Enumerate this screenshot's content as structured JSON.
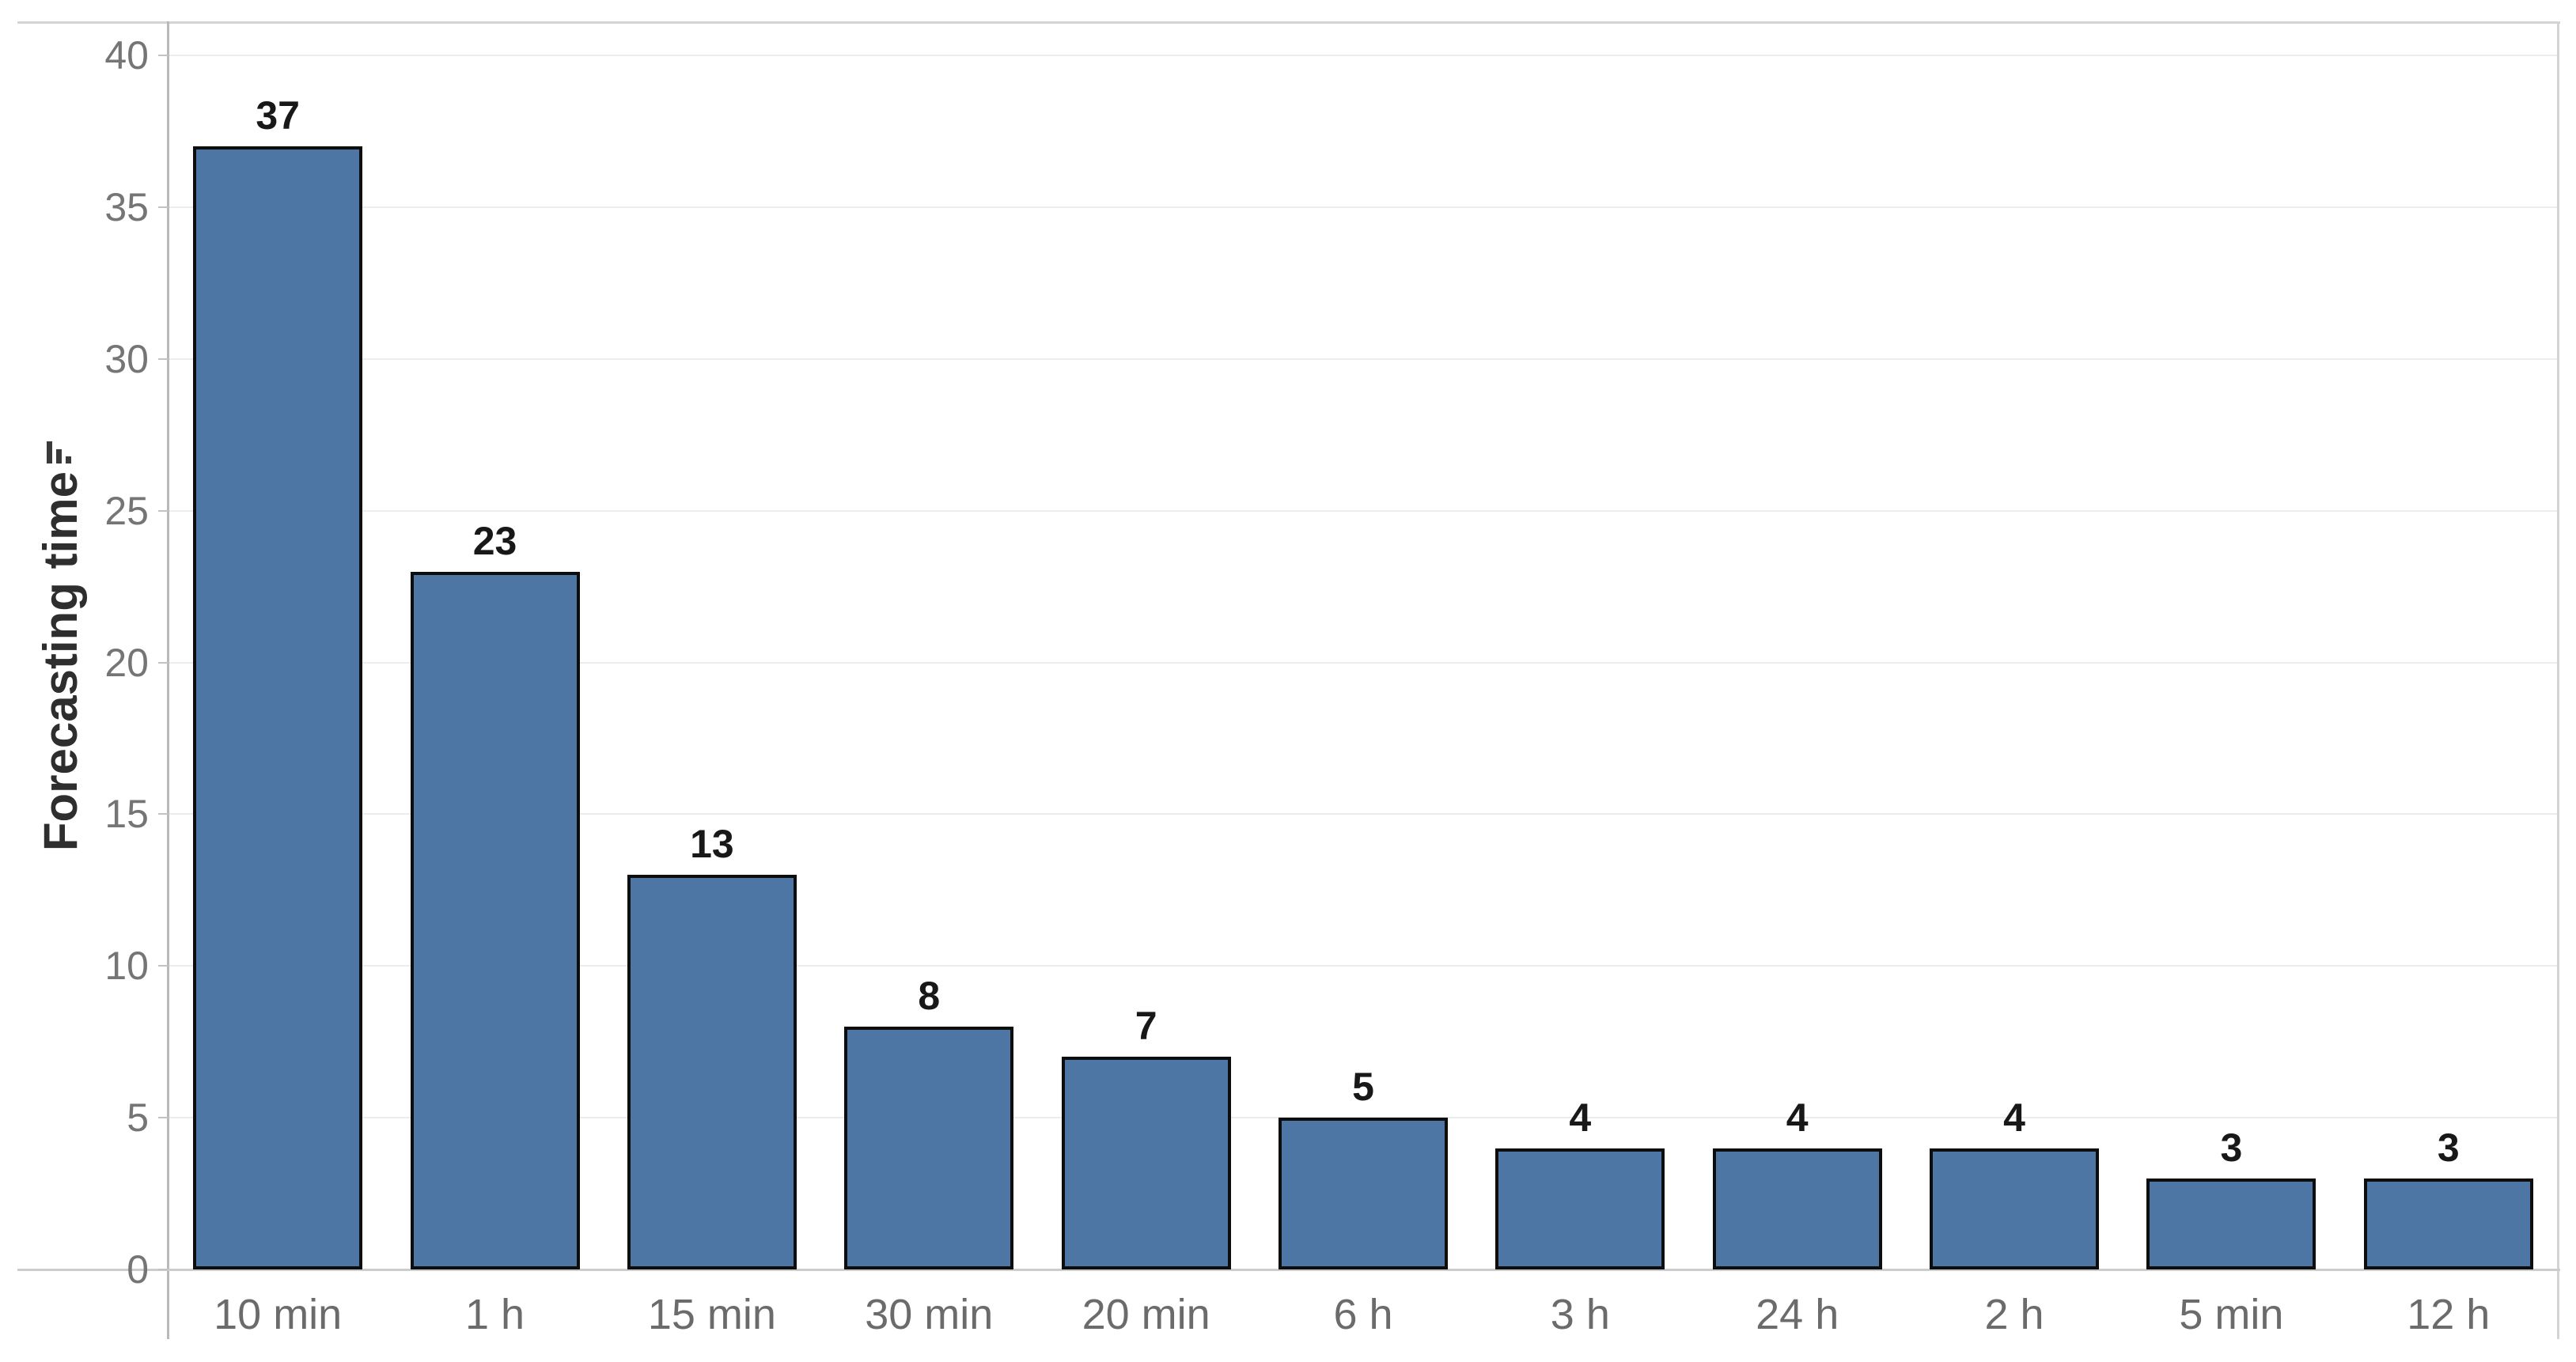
{
  "chart_data": {
    "type": "bar",
    "title": "",
    "xlabel": "",
    "ylabel": "Forecasting time",
    "categories": [
      "10 min",
      "1 h",
      "15 min",
      "30 min",
      "20 min",
      "6 h",
      "3 h",
      "24 h",
      "2 h",
      "5 min",
      "12 h"
    ],
    "values": [
      37,
      23,
      13,
      8,
      7,
      5,
      4,
      4,
      4,
      3,
      3
    ],
    "ylim": [
      0,
      41.1
    ],
    "yticks": [
      0,
      5,
      10,
      15,
      20,
      25,
      30,
      35,
      40
    ],
    "grid": true,
    "legend": "none",
    "sort_order": "descending",
    "sort_icon": "sort-descending-icon",
    "colors": {
      "bar_fill": "#4e76a5",
      "bar_border": "#0d0d0d",
      "value_label": "#181818",
      "y_tick_label": "#757575",
      "x_tick_label": "#6b6b6b",
      "axis_title": "#2e2e2e",
      "gridline": "#ededed",
      "frame_line": "#d4d4d4",
      "axis_line": "#b9b9b9"
    }
  }
}
